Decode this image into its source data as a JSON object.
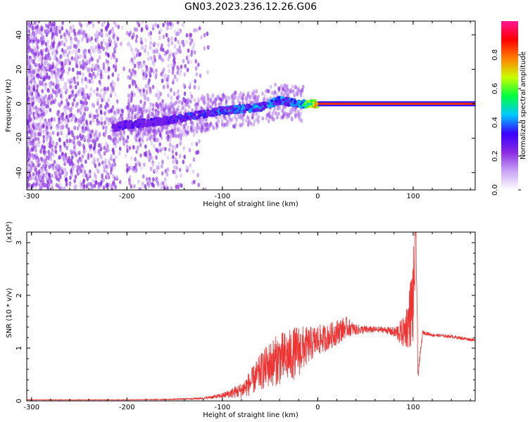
{
  "title": "GN03.2023.236.12.26.G06",
  "chart_data": [
    {
      "type": "heatmap",
      "xlabel": "Height of straight line (km)",
      "ylabel": "Frequency (Hz)",
      "xlim": [
        -305,
        165
      ],
      "ylim": [
        -50,
        48
      ],
      "xticks": [
        -300,
        -200,
        -100,
        0,
        100
      ],
      "xtick_labels": [
        "-300",
        "-200",
        "-100",
        "0",
        "100"
      ],
      "yticks": [
        -40,
        -20,
        0,
        20,
        40
      ],
      "ytick_labels": [
        "-40",
        "-20",
        "0",
        "20",
        "40"
      ],
      "colorbar": {
        "label": "Normalized spectral amplitude",
        "range": [
          0,
          1
        ],
        "ticks": [
          0.0,
          0.2,
          0.4,
          0.6,
          0.8
        ],
        "tick_labels": [
          "0.0",
          "0.2",
          "0.4",
          "0.6",
          "0.8"
        ],
        "colors": [
          "#ffffff",
          "#c9a4f5",
          "#8a2be2",
          "#3a00ff",
          "#00c8ff",
          "#00ff40",
          "#c8ff00",
          "#ff8000",
          "#ff0000",
          "#ff1493"
        ]
      },
      "signal_trace": {
        "x": [
          -215,
          -200,
          -180,
          -160,
          -140,
          -120,
          -100,
          -80,
          -60,
          -40,
          -20,
          0,
          20,
          50,
          80,
          100,
          165
        ],
        "y": [
          -14,
          -12,
          -11,
          -10,
          -8,
          -6,
          -4,
          -3,
          -2,
          2,
          0,
          0,
          0,
          0,
          0,
          0,
          0
        ],
        "amplitude": [
          0.3,
          0.35,
          0.35,
          0.35,
          0.4,
          0.4,
          0.45,
          0.45,
          0.45,
          0.45,
          0.5,
          0.85,
          0.85,
          0.85,
          0.85,
          0.85,
          0.85
        ]
      },
      "grid": false
    },
    {
      "type": "line",
      "xlabel": "Height of straight line (km)",
      "ylabel": "SNR (10 * v/v)",
      "scale_label": "(x10⁴)",
      "xlim": [
        -305,
        165
      ],
      "ylim": [
        0,
        3.2
      ],
      "xticks": [
        -300,
        -200,
        -100,
        0,
        100
      ],
      "xtick_labels": [
        "-300",
        "-200",
        "-100",
        "0",
        "100"
      ],
      "yticks": [
        0,
        1,
        2,
        3
      ],
      "ytick_labels": [
        "0",
        "1",
        "2",
        "3"
      ],
      "series": [
        {
          "color": "#ee3333",
          "x": [
            -305,
            -250,
            -200,
            -150,
            -120,
            -100,
            -80,
            -70,
            -60,
            -50,
            -40,
            -30,
            -20,
            -10,
            0,
            10,
            20,
            30,
            40,
            50,
            60,
            70,
            80,
            90,
            95,
            100,
            103,
            105,
            110,
            120,
            140,
            165
          ],
          "y": [
            0.02,
            0.02,
            0.02,
            0.03,
            0.05,
            0.1,
            0.2,
            0.35,
            0.55,
            0.7,
            0.8,
            0.85,
            0.95,
            1.05,
            1.15,
            1.2,
            1.3,
            1.4,
            1.35,
            1.35,
            1.35,
            1.35,
            1.3,
            1.3,
            1.5,
            1.9,
            3.2,
            0.5,
            1.3,
            1.25,
            1.22,
            1.15
          ],
          "noise": [
            0.005,
            0.005,
            0.005,
            0.01,
            0.02,
            0.05,
            0.15,
            0.25,
            0.35,
            0.45,
            0.5,
            0.5,
            0.5,
            0.35,
            0.3,
            0.25,
            0.25,
            0.2,
            0.1,
            0.08,
            0.06,
            0.06,
            0.1,
            0.3,
            0.5,
            0.9,
            0.5,
            0.1,
            0.04,
            0.03,
            0.03,
            0.03
          ]
        }
      ],
      "grid": false
    }
  ]
}
